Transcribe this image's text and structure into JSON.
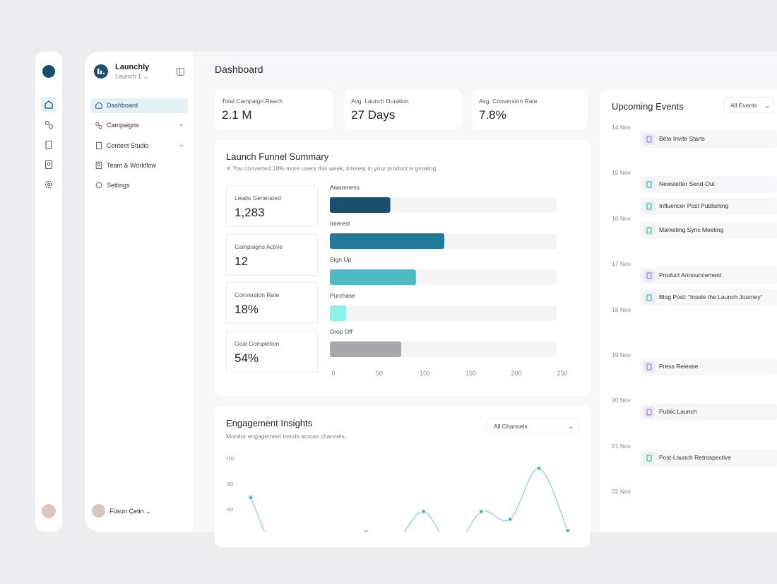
{
  "sidebar": {
    "brand": "Launchly",
    "project": "Launch 1",
    "nav": [
      "Dashboard",
      "Campaigns",
      "Content Studio",
      "Team & Workflow",
      "Settings"
    ],
    "user": "Füsun Çetin"
  },
  "header": {
    "title": "Dashboard"
  },
  "kpis": [
    {
      "label": "Total Campaign Reach",
      "value": "2.1 M"
    },
    {
      "label": "Avg. Launch Duration",
      "value": "27 Days"
    },
    {
      "label": "Avg. Conversion Rate",
      "value": "7.8%"
    }
  ],
  "funnel_stats": [
    {
      "label": "Leads Generated",
      "value": "1,283"
    },
    {
      "label": "Campaigns Active",
      "value": "12"
    },
    {
      "label": "Conversion Rate",
      "value": "18%"
    },
    {
      "label": "Goal Completion",
      "value": "54%"
    }
  ],
  "engagement_filter": "All Channels",
  "events": {
    "title": "Upcoming Events",
    "filter": "All Events",
    "days": [
      {
        "date": "14 Nov",
        "items": [
          "Beta Invite Starts"
        ]
      },
      {
        "date": "15 Nov",
        "items": [
          "Newsletter Send-Out",
          "Influencer Post Publishing"
        ]
      },
      {
        "date": "16 Nov",
        "items": [
          "Marketing Sync Meeting"
        ]
      },
      {
        "date": "17 Nov",
        "items": [
          "Product Announcement",
          "Blog Post: “Inside the Launch Journey”"
        ]
      },
      {
        "date": "18 Nov",
        "items": []
      },
      {
        "date": "19 Nov",
        "items": [
          "Press Release"
        ]
      },
      {
        "date": "20 Nov",
        "items": [
          "Public Launch"
        ]
      },
      {
        "date": "21 Nov",
        "items": [
          "Post-Launch Retrospective"
        ]
      },
      {
        "date": "22 Nov",
        "items": []
      }
    ]
  },
  "chart_data": [
    {
      "type": "bar",
      "orientation": "horizontal",
      "title": "Launch Funnel Summary",
      "subtitle": "You converted 18% more users this week, interest in your product is growing.",
      "categories": [
        "Awareness",
        "Interest",
        "Sign Up",
        "Purchase",
        "Drop Off"
      ],
      "values": [
        66,
        125,
        94,
        18,
        78
      ],
      "colors": [
        "#1b4f6e",
        "#23799a",
        "#4fb9c4",
        "#8ff0e8",
        "#a8a7ab"
      ],
      "xlim": [
        0,
        250
      ],
      "xticks": [
        0,
        50,
        100,
        150,
        200,
        250
      ]
    },
    {
      "type": "line",
      "title": "Engagement Insights",
      "subtitle": "Monitor engagement trends across channels.",
      "categories": [
        null,
        null,
        null,
        null,
        null,
        null,
        null,
        null,
        null,
        null,
        null,
        null
      ],
      "values": [
        69,
        20,
        25,
        30,
        42,
        35,
        58,
        30,
        58,
        52,
        92,
        43
      ],
      "color": "#8cc8dd",
      "ylim": [
        0,
        100
      ],
      "yticks": [
        60,
        80,
        100
      ]
    }
  ]
}
